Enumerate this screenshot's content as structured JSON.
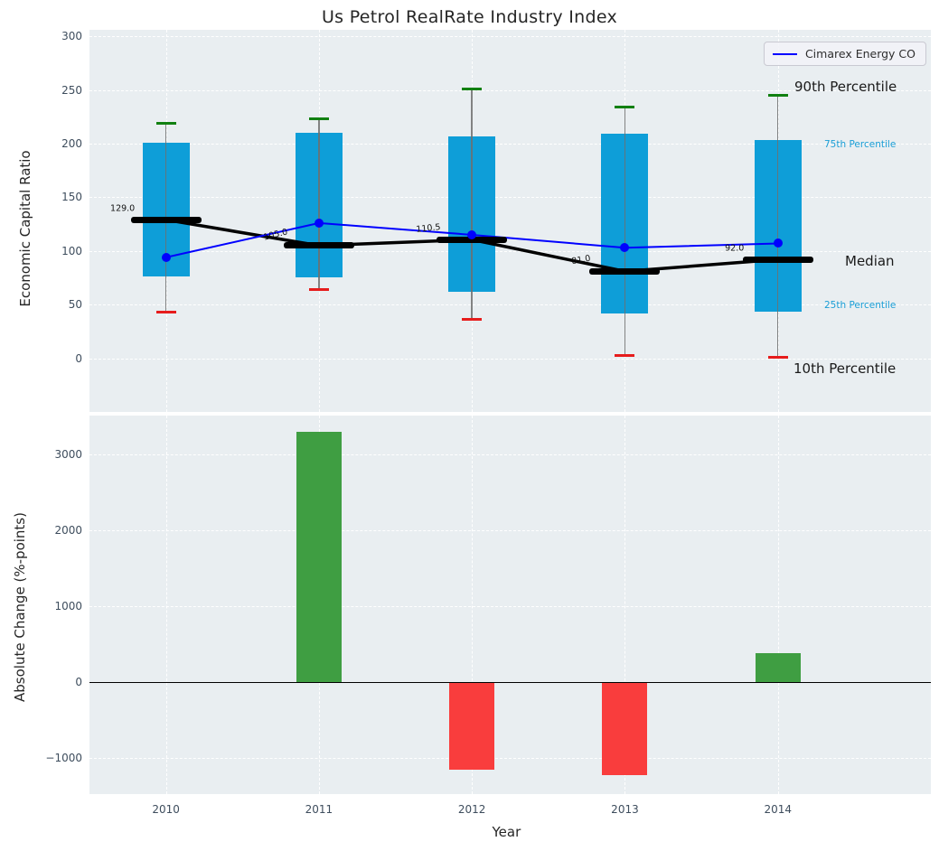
{
  "title": "Us Petrol RealRate Industry Index",
  "colors": {
    "axes_background": "#e9eef1",
    "box_fill": "#0e9ed8",
    "percentile_label_cyan": "#1a9ed6",
    "cimarex_line": "#0000ff",
    "median_black": "#000000",
    "cap_90th_green": "#118011",
    "cap_10th_red": "#e61c1c",
    "whisker_gray": "#6e6e6e",
    "bar_positive_green": "#3f9e42",
    "bar_negative_red": "#f93d3d",
    "tick_text": "#3e4d5d"
  },
  "top_chart": {
    "ylabel": "Economic Capital Ratio",
    "legend_label": "Cimarex Energy CO",
    "side_labels": {
      "p90": "90th Percentile",
      "p75": "75th Percentile",
      "median": "Median",
      "p25": "25th Percentile",
      "p10": "10th Percentile"
    }
  },
  "bottom_chart": {
    "ylabel": "Absolute Change (%-points)",
    "xlabel": "Year"
  },
  "chart_data": [
    {
      "type": "box",
      "title": "Us Petrol RealRate Industry Index",
      "xlabel": "",
      "ylabel": "Economic Capital Ratio",
      "categories": [
        2010,
        2011,
        2012,
        2013,
        2014
      ],
      "xlim": [
        2009.5,
        2015.0
      ],
      "ylim": [
        -50,
        306
      ],
      "yticks": [
        0,
        50,
        100,
        150,
        200,
        250,
        300
      ],
      "grid": true,
      "legend_position": "upper right",
      "series": [
        {
          "name": "10th Percentile",
          "values": [
            43,
            64,
            36,
            3,
            1
          ]
        },
        {
          "name": "25th Percentile",
          "values": [
            76,
            75,
            62,
            42,
            43
          ]
        },
        {
          "name": "Median",
          "values": [
            129,
            105,
            110.5,
            81,
            92
          ]
        },
        {
          "name": "75th Percentile",
          "values": [
            201,
            210,
            207,
            209,
            203
          ]
        },
        {
          "name": "90th Percentile",
          "values": [
            219,
            223,
            251,
            234,
            245
          ]
        },
        {
          "name": "Cimarex Energy CO",
          "values": [
            94,
            126,
            115,
            103,
            107
          ]
        }
      ],
      "median_annotations": [
        "129.0",
        "105.0",
        "110.5",
        "81.0",
        "92.0"
      ]
    },
    {
      "type": "bar",
      "title": "",
      "xlabel": "Year",
      "ylabel": "Absolute Change (%-points)",
      "categories": [
        2010,
        2011,
        2012,
        2013,
        2014
      ],
      "xlim": [
        2009.5,
        2015.0
      ],
      "ylim": [
        -1475,
        3510
      ],
      "yticks": [
        -1000,
        0,
        1000,
        2000,
        3000
      ],
      "grid": true,
      "values": [
        null,
        3300,
        -1150,
        -1230,
        385
      ]
    }
  ]
}
